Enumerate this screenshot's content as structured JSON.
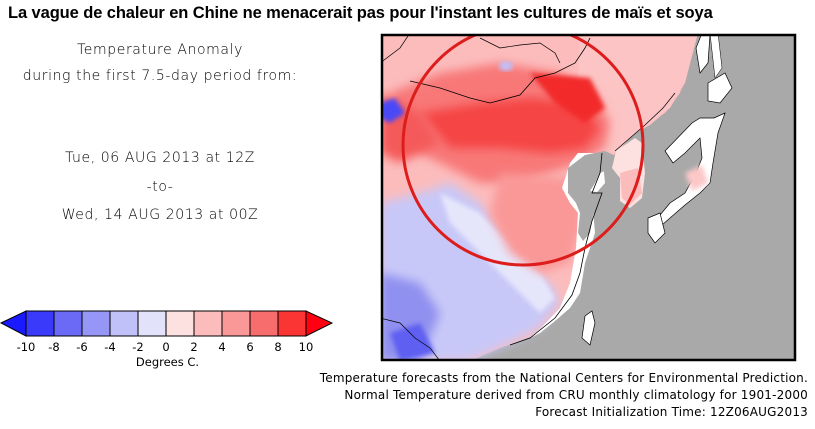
{
  "headline": "La vague de chaleur en Chine ne menacerait pas pour l'instant les cultures de maïs et soya",
  "panel": {
    "title_line1": "Temperature Anomaly",
    "title_line2": "during the first 7.5-day period from:",
    "start": "Tue, 06 AUG 2013 at 12Z",
    "separator": "-to-",
    "end": "Wed, 14 AUG 2013 at 00Z"
  },
  "legend": {
    "unit_label": "Degrees C.",
    "ticks": [
      "-10",
      "-8",
      "-6",
      "-4",
      "-2",
      "0",
      "2",
      "4",
      "6",
      "8",
      "10"
    ],
    "colors": {
      "below_min": "#1a1aff",
      "bins": [
        "#3a3afa",
        "#6a6af7",
        "#9696f7",
        "#c1c1f9",
        "#e2e2fa",
        "#fde0e0",
        "#fcbcbc",
        "#fa9898",
        "#f76c6c",
        "#fb3434"
      ],
      "above_max": "#ff0010"
    }
  },
  "map": {
    "region": "East Asia (China, Mongolia, Korea, Japan)",
    "ocean_color": "#a9a9a9",
    "highlight_circle_color": "#dd1c1c"
  },
  "footer": {
    "line1": "Temperature forecasts from the National Centers for Environmental Prediction.",
    "line2": "Normal Temperature derived from CRU monthly climatology for 1901-2000",
    "line3": "Forecast Initialization Time: 12Z06AUG2013"
  }
}
